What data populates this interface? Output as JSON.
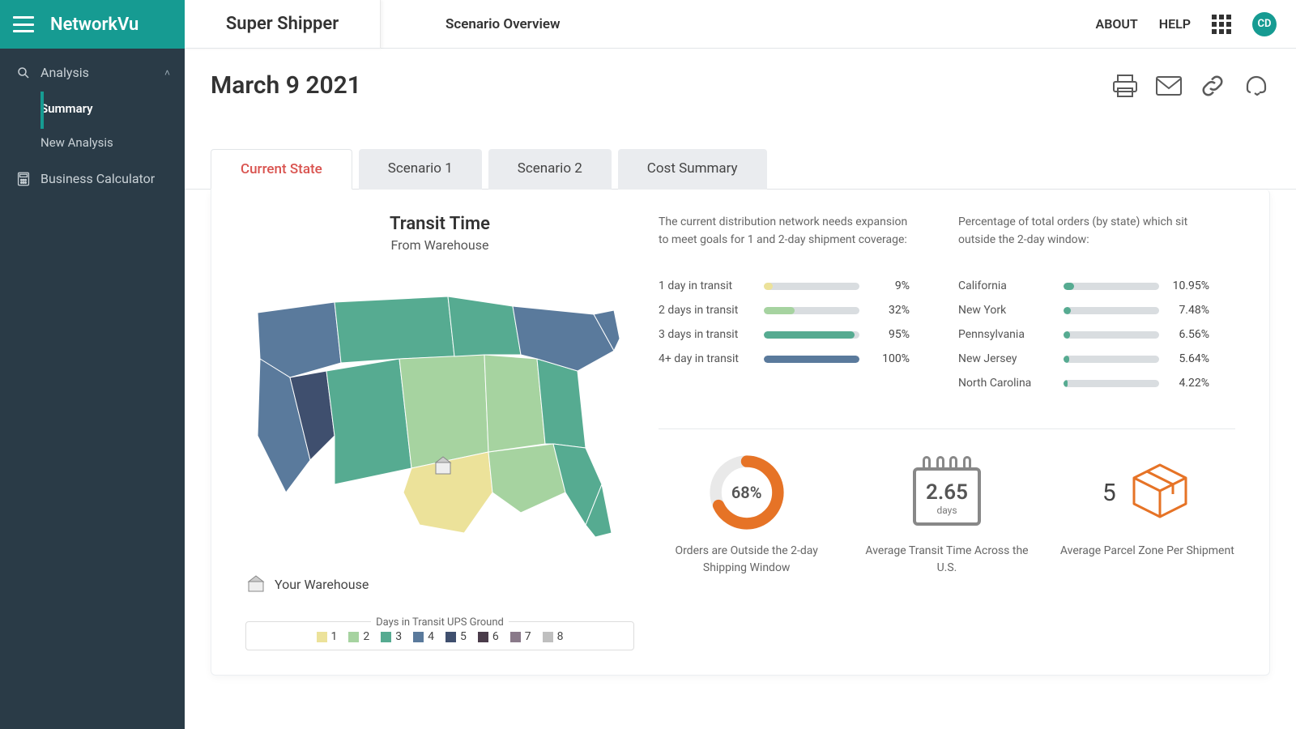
{
  "brand": {
    "logo": "NetworkVu"
  },
  "sidebar": {
    "analysis_label": "Analysis",
    "summary_label": "Summary",
    "new_analysis_label": "New Analysis",
    "business_calc_label": "Business Calculator"
  },
  "topbar": {
    "shipper": "Super Shipper",
    "page_title": "Scenario Overview",
    "about": "ABOUT",
    "help": "HELP",
    "avatar_initials": "CD"
  },
  "page": {
    "date_title": "March 9 2021"
  },
  "tabs": [
    {
      "label": "Current State",
      "active": true
    },
    {
      "label": "Scenario 1",
      "active": false
    },
    {
      "label": "Scenario 2",
      "active": false
    },
    {
      "label": "Cost Summary",
      "active": false
    }
  ],
  "map": {
    "title": "Transit Time",
    "subtitle": "From Warehouse",
    "warehouse_legend": "Your Warehouse",
    "legend_title": "Days in Transit UPS Ground",
    "legend_items": [
      {
        "label": "1",
        "color": "#ece29a"
      },
      {
        "label": "2",
        "color": "#a6d3a0"
      },
      {
        "label": "3",
        "color": "#56ab91"
      },
      {
        "label": "4",
        "color": "#5a7a9c"
      },
      {
        "label": "5",
        "color": "#3f4f6e"
      },
      {
        "label": "6",
        "color": "#4a3c4a"
      },
      {
        "label": "7",
        "color": "#8a7a8a"
      },
      {
        "label": "8",
        "color": "#bfbfbf"
      }
    ],
    "region_colors": {
      "zone1": "#ece29a",
      "zone2": "#a6d3a0",
      "zone3": "#56ab91",
      "zone4": "#5a7a9c",
      "zone5": "#3f4f6e"
    }
  },
  "descriptions": {
    "left": "The current distribution network needs expansion to meet goals for 1 and 2-day shipment coverage:",
    "right": "Percentage of total orders (by state) which sit outside the 2-day window:"
  },
  "transit_bars": {
    "track_color": "#d9dde0",
    "rows": [
      {
        "label": "1 day in transit",
        "value_text": "9%",
        "pct": 9,
        "color": "#ece29a"
      },
      {
        "label": "2 days in transit",
        "value_text": "32%",
        "pct": 32,
        "color": "#a6d3a0"
      },
      {
        "label": "3 days in transit",
        "value_text": "95%",
        "pct": 95,
        "color": "#56ab91"
      },
      {
        "label": "4+ day in transit",
        "value_text": "100%",
        "pct": 100,
        "color": "#5a7a9c"
      }
    ]
  },
  "state_bars": {
    "track_color": "#d9dde0",
    "fill_color": "#56ab91",
    "rows": [
      {
        "label": "California",
        "value_text": "10.95%",
        "pct": 10.95
      },
      {
        "label": "New York",
        "value_text": "7.48%",
        "pct": 7.48
      },
      {
        "label": "Pennsylvania",
        "value_text": "6.56%",
        "pct": 6.56
      },
      {
        "label": "New Jersey",
        "value_text": "5.64%",
        "pct": 5.64
      },
      {
        "label": "North Carolina",
        "value_text": "4.22%",
        "pct": 4.22
      }
    ]
  },
  "kpis": {
    "donut": {
      "pct": 68,
      "pct_text": "68%",
      "label": "Orders are Outside the 2-day Shipping Window",
      "color": "#e67326",
      "track": "#e9e9e9"
    },
    "avg_days": {
      "value": "2.65",
      "unit": "days",
      "label": "Average Transit Time Across the U.S."
    },
    "zone": {
      "value": "5",
      "label": "Average Parcel Zone Per Shipment",
      "box_color": "#e67326"
    }
  }
}
